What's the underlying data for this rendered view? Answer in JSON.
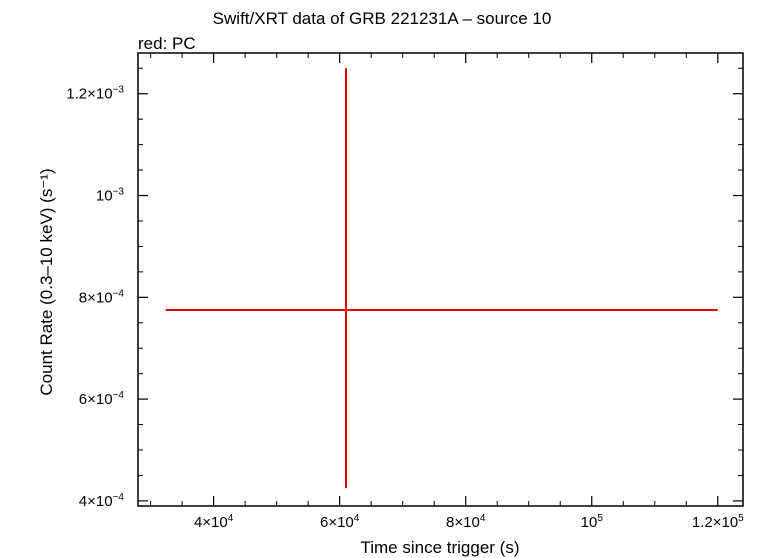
{
  "chart_data": {
    "type": "scatter",
    "title": "Swift/XRT data of GRB 221231A – source 10",
    "subtitle": "red: PC",
    "xlabel": "Time since trigger (s)",
    "ylabel": "Count Rate (0.3–10 keV) (s⁻¹)",
    "xlim": [
      28000,
      124000
    ],
    "ylim": [
      0.00039,
      0.00128
    ],
    "grid": false,
    "x_ticks": [
      {
        "value": 40000,
        "mant": "4×10",
        "exp": "4"
      },
      {
        "value": 60000,
        "mant": "6×10",
        "exp": "4"
      },
      {
        "value": 80000,
        "mant": "8×10",
        "exp": "4"
      },
      {
        "value": 100000,
        "mant": "10",
        "exp": "5"
      },
      {
        "value": 120000,
        "mant": "1.2×10",
        "exp": "5"
      }
    ],
    "y_ticks": [
      {
        "value": 0.0004,
        "mant": "4×10",
        "exp": "−4"
      },
      {
        "value": 0.0006,
        "mant": "6×10",
        "exp": "−4"
      },
      {
        "value": 0.0008,
        "mant": "8×10",
        "exp": "−4"
      },
      {
        "value": 0.001,
        "mant": "10",
        "exp": "−3"
      },
      {
        "value": 0.0012,
        "mant": "1.2×10",
        "exp": "−3"
      }
    ],
    "series": [
      {
        "name": "PC",
        "color": "#e00000",
        "points": [
          {
            "x": 61000,
            "x_low": 32400,
            "x_high": 120000,
            "y": 0.000775,
            "y_low": 0.000425,
            "y_high": 0.00125
          }
        ]
      }
    ]
  }
}
